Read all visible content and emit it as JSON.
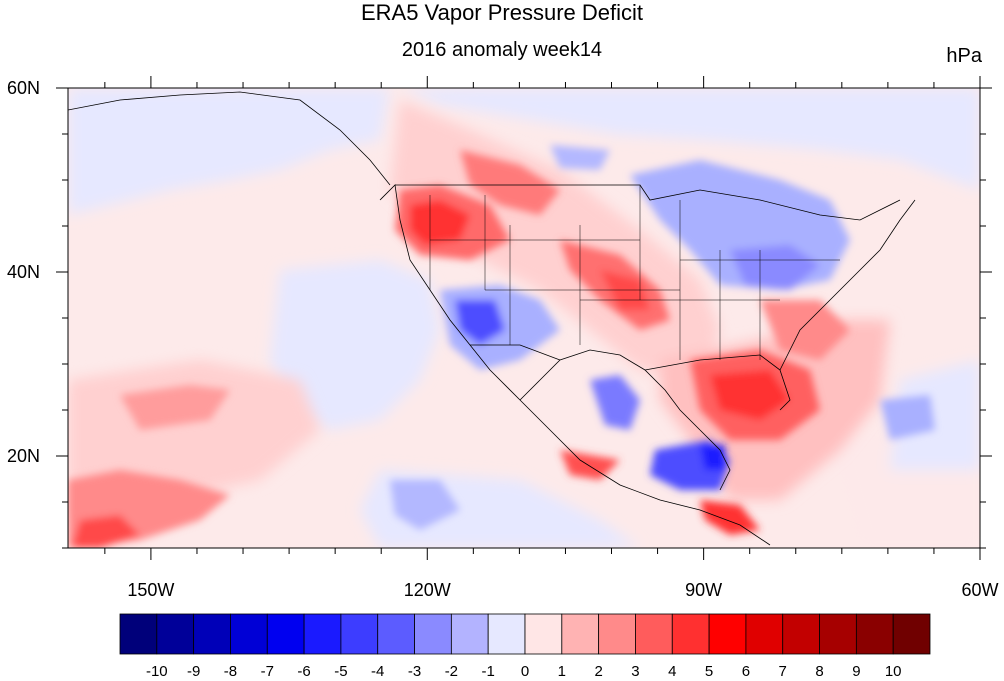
{
  "title": "ERA5 Vapor Pressure Deficit",
  "subtitle": "2016 anomaly week14",
  "units": "hPa",
  "lon_ticks": [
    {
      "label": "150W",
      "lon": -150
    },
    {
      "label": "120W",
      "lon": -120
    },
    {
      "label": "90W",
      "lon": -90
    },
    {
      "label": "60W",
      "lon": -60
    }
  ],
  "lat_ticks": [
    {
      "label": "60N",
      "lat": 60
    },
    {
      "label": "40N",
      "lat": 40
    },
    {
      "label": "20N",
      "lat": 20
    }
  ],
  "map_extent": {
    "lon_min": -159,
    "lon_max": -60,
    "lat_min": 10,
    "lat_max": 60
  },
  "colorbar": {
    "labels": [
      "-10",
      "-9",
      "-8",
      "-7",
      "-6",
      "-5",
      "-4",
      "-3",
      "-2",
      "-1",
      "0",
      "1",
      "2",
      "3",
      "4",
      "5",
      "6",
      "7",
      "8",
      "9",
      "10"
    ],
    "colors": [
      "#00007a",
      "#000099",
      "#0000b8",
      "#0000d6",
      "#0000f0",
      "#1a1aff",
      "#3d3dff",
      "#5c5cff",
      "#8a8aff",
      "#b3b3ff",
      "#e6e8ff",
      "#ffe6e6",
      "#ffb3b3",
      "#ff8a8a",
      "#ff5c5c",
      "#ff3030",
      "#ff0000",
      "#e00000",
      "#c20000",
      "#a60000",
      "#8a0000",
      "#700000"
    ]
  }
}
